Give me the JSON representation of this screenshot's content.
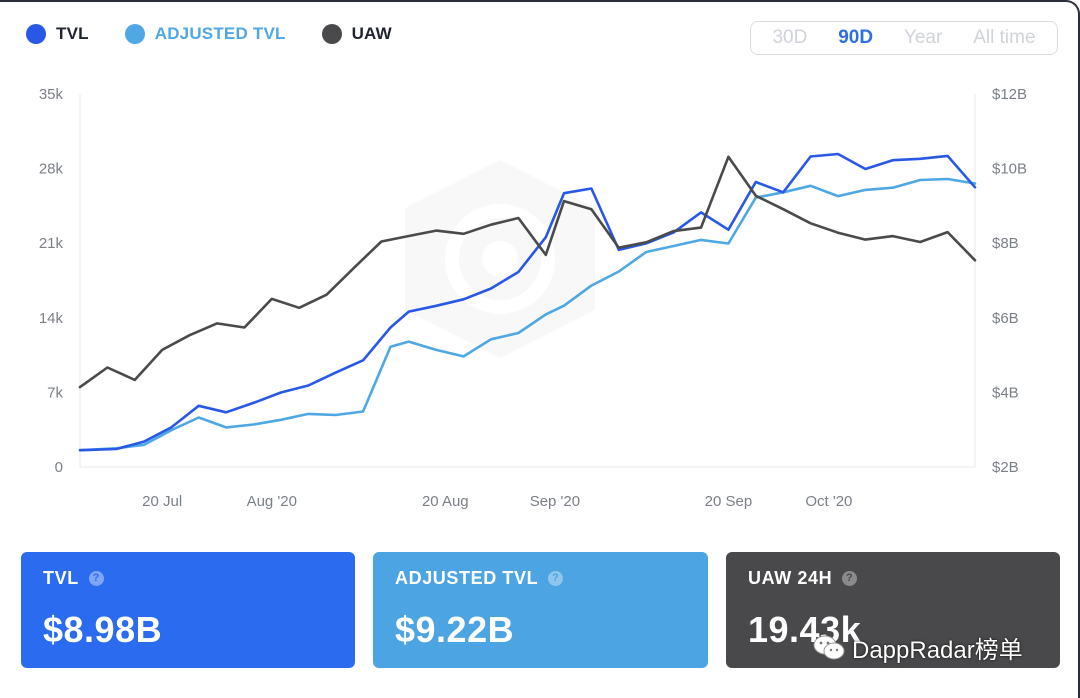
{
  "legend": [
    {
      "label": "TVL",
      "color": "#2a58e6"
    },
    {
      "label": "ADJUSTED TVL",
      "color": "#4fa7e3"
    },
    {
      "label": "UAW",
      "color": "#4a4a4c"
    }
  ],
  "range_selector": {
    "options": [
      "30D",
      "90D",
      "Year",
      "All time"
    ],
    "active": "90D"
  },
  "chart_data": {
    "type": "line",
    "x_ticks": [
      "20 Jul",
      "Aug '20",
      "20 Aug",
      "Sep '20",
      "20 Sep",
      "Oct '20"
    ],
    "x_range": [
      "2020-07-11",
      "2020-10-17"
    ],
    "y_left": {
      "ticks": [
        "0",
        "7k",
        "14k",
        "21k",
        "28k",
        "35k"
      ],
      "range": [
        0,
        35000
      ]
    },
    "y_right": {
      "ticks": [
        "$2B",
        "$4B",
        "$6B",
        "$8B",
        "$10B",
        "$12B"
      ],
      "range": [
        2,
        12
      ],
      "unit": "billion USD"
    },
    "grid": false,
    "legend_position": "top-left",
    "series": [
      {
        "name": "TVL",
        "axis": "right",
        "color": "#2a58e6",
        "x": [
          "2020-07-11",
          "2020-07-15",
          "2020-07-18",
          "2020-07-21",
          "2020-07-24",
          "2020-07-27",
          "2020-07-30",
          "2020-08-02",
          "2020-08-05",
          "2020-08-08",
          "2020-08-11",
          "2020-08-14",
          "2020-08-16",
          "2020-08-19",
          "2020-08-22",
          "2020-08-25",
          "2020-08-28",
          "2020-08-31",
          "2020-09-02",
          "2020-09-05",
          "2020-09-08",
          "2020-09-11",
          "2020-09-14",
          "2020-09-17",
          "2020-09-20",
          "2020-09-23",
          "2020-09-26",
          "2020-09-29",
          "2020-10-02",
          "2020-10-05",
          "2020-10-08",
          "2020-10-11",
          "2020-10-14",
          "2020-10-17"
        ],
        "y": [
          2.45,
          2.5,
          2.65,
          3.1,
          3.6,
          3.5,
          3.7,
          4.0,
          4.2,
          4.5,
          4.9,
          5.7,
          6.2,
          6.3,
          6.5,
          6.8,
          7.2,
          8.2,
          9.3,
          9.5,
          7.8,
          8.0,
          8.3,
          8.8,
          8.4,
          9.6,
          9.4,
          10.3,
          10.4,
          10.0,
          10.2,
          10.3,
          10.3,
          9.5
        ]
      },
      {
        "name": "ADJUSTED TVL",
        "axis": "right",
        "color": "#4fa7e3",
        "x": [
          "2020-07-11",
          "2020-07-15",
          "2020-07-18",
          "2020-07-21",
          "2020-07-24",
          "2020-07-27",
          "2020-07-30",
          "2020-08-02",
          "2020-08-05",
          "2020-08-08",
          "2020-08-11",
          "2020-08-14",
          "2020-08-16",
          "2020-08-19",
          "2020-08-22",
          "2020-08-25",
          "2020-08-28",
          "2020-08-31",
          "2020-09-02",
          "2020-09-05",
          "2020-09-08",
          "2020-09-11",
          "2020-09-14",
          "2020-09-17",
          "2020-09-20",
          "2020-09-23",
          "2020-09-26",
          "2020-09-29",
          "2020-10-02",
          "2020-10-05",
          "2020-10-08",
          "2020-10-11",
          "2020-10-14",
          "2020-10-17"
        ],
        "y": [
          2.45,
          2.48,
          2.6,
          3.0,
          3.3,
          3.1,
          3.1,
          3.3,
          3.4,
          3.4,
          3.5,
          5.2,
          5.4,
          5.1,
          5.0,
          5.4,
          5.6,
          6.1,
          6.3,
          6.9,
          7.2,
          7.8,
          7.9,
          8.1,
          8.0,
          9.2,
          9.4,
          9.5,
          9.3,
          9.4,
          9.5,
          9.7,
          9.7,
          9.6
        ]
      },
      {
        "name": "UAW",
        "axis": "left",
        "color": "#4a4a4c",
        "x": [
          "2020-07-11",
          "2020-07-14",
          "2020-07-17",
          "2020-07-20",
          "2020-07-23",
          "2020-07-26",
          "2020-07-29",
          "2020-08-01",
          "2020-08-04",
          "2020-08-07",
          "2020-08-10",
          "2020-08-13",
          "2020-08-16",
          "2020-08-19",
          "2020-08-22",
          "2020-08-25",
          "2020-08-28",
          "2020-08-31",
          "2020-09-02",
          "2020-09-05",
          "2020-09-08",
          "2020-09-11",
          "2020-09-14",
          "2020-09-17",
          "2020-09-20",
          "2020-09-23",
          "2020-09-26",
          "2020-09-29",
          "2020-10-02",
          "2020-10-05",
          "2020-10-08",
          "2020-10-11",
          "2020-10-14",
          "2020-10-17"
        ],
        "y": [
          7500,
          9200,
          8300,
          10900,
          12400,
          13500,
          13000,
          15900,
          14800,
          16300,
          18600,
          21200,
          21700,
          22100,
          22000,
          22600,
          23500,
          19800,
          25000,
          24200,
          20500,
          21200,
          22000,
          22600,
          29000,
          25500,
          24200,
          22800,
          22100,
          21200,
          21800,
          21000,
          22100,
          19400
        ]
      }
    ]
  },
  "cards": [
    {
      "title": "TVL",
      "value": "$8.98B",
      "color": "#2a6bf0"
    },
    {
      "title": "ADJUSTED TVL",
      "value": "$9.22B",
      "color": "#4ca4e2"
    },
    {
      "title": "UAW 24H",
      "value": "19.43k",
      "color": "#49494b"
    }
  ],
  "watermark": {
    "text": "DappRadar榜单",
    "icon": "wechat-icon"
  }
}
